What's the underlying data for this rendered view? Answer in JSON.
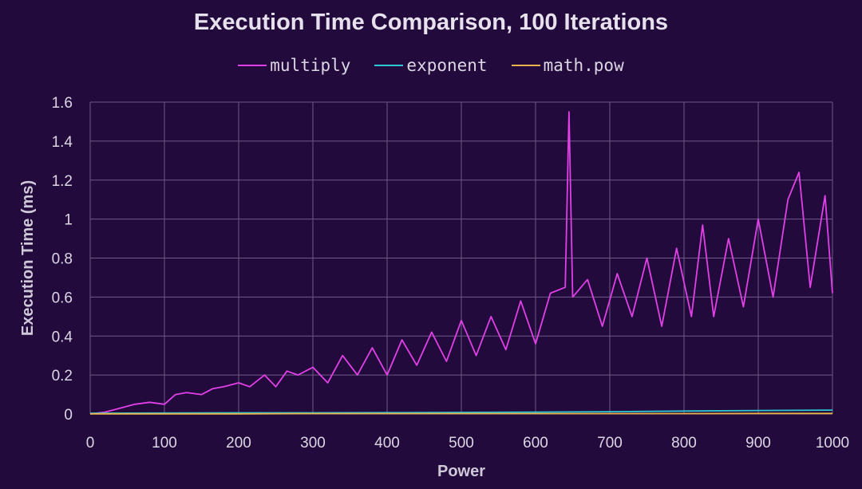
{
  "chart_data": {
    "type": "line",
    "title": "Execution Time Comparison, 100 Iterations",
    "xlabel": "Power",
    "ylabel": "Execution Time (ms)",
    "xlim": [
      0,
      1000
    ],
    "ylim": [
      0,
      1.6
    ],
    "xticks": [
      "0",
      "100",
      "200",
      "300",
      "400",
      "500",
      "600",
      "700",
      "800",
      "900",
      "1000"
    ],
    "yticks": [
      "0",
      "0.2",
      "0.4",
      "0.6",
      "0.8",
      "1",
      "1.2",
      "1.4",
      "1.6"
    ],
    "grid": true,
    "legend_position": "top-center",
    "series": [
      {
        "name": "multiply",
        "color": "#e040e6",
        "x": [
          0,
          20,
          40,
          60,
          80,
          100,
          115,
          130,
          150,
          165,
          180,
          200,
          215,
          235,
          250,
          265,
          280,
          300,
          320,
          340,
          360,
          380,
          400,
          420,
          440,
          460,
          480,
          500,
          520,
          540,
          560,
          580,
          600,
          620,
          640,
          645,
          650,
          670,
          690,
          710,
          730,
          750,
          770,
          790,
          810,
          825,
          840,
          860,
          880,
          900,
          920,
          940,
          955,
          970,
          990,
          1000
        ],
        "values": [
          0,
          0.01,
          0.03,
          0.05,
          0.06,
          0.05,
          0.1,
          0.11,
          0.1,
          0.13,
          0.14,
          0.16,
          0.14,
          0.2,
          0.14,
          0.22,
          0.2,
          0.24,
          0.16,
          0.3,
          0.2,
          0.34,
          0.2,
          0.38,
          0.25,
          0.42,
          0.27,
          0.48,
          0.3,
          0.5,
          0.33,
          0.58,
          0.36,
          0.62,
          0.65,
          1.55,
          0.6,
          0.69,
          0.45,
          0.72,
          0.5,
          0.8,
          0.45,
          0.85,
          0.5,
          0.97,
          0.5,
          0.9,
          0.55,
          1.0,
          0.6,
          1.1,
          1.24,
          0.65,
          1.12,
          0.62
        ]
      },
      {
        "name": "exponent",
        "color": "#2ec8d4",
        "x": [
          0,
          100,
          200,
          300,
          400,
          500,
          600,
          700,
          800,
          900,
          1000
        ],
        "values": [
          0.004,
          0.005,
          0.006,
          0.006,
          0.007,
          0.008,
          0.01,
          0.012,
          0.015,
          0.018,
          0.02
        ]
      },
      {
        "name": "math.pow",
        "color": "#e8b24a",
        "x": [
          0,
          100,
          200,
          300,
          400,
          500,
          600,
          700,
          800,
          900,
          1000
        ],
        "values": [
          0.001,
          0.001,
          0.001,
          0.002,
          0.002,
          0.002,
          0.002,
          0.002,
          0.002,
          0.003,
          0.003
        ]
      }
    ]
  }
}
